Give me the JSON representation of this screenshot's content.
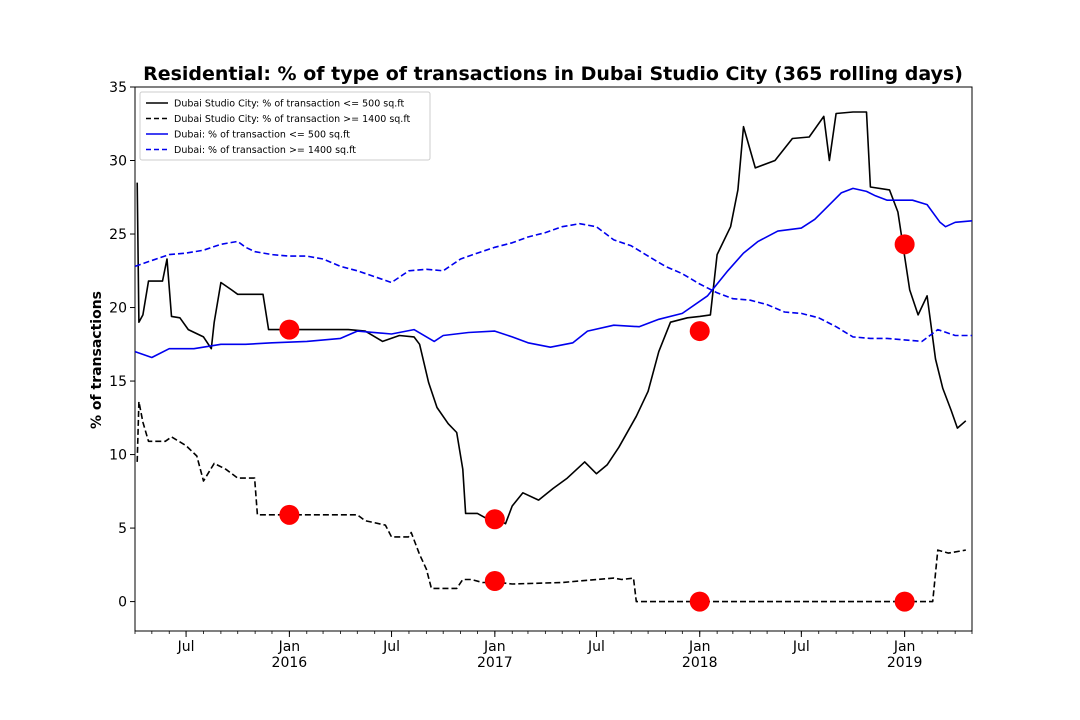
{
  "chart_data": {
    "type": "line",
    "title": "Residential: % of type of transactions in Dubai Studio City (365 rolling days)",
    "xlabel": "",
    "ylabel": "% of transactions",
    "xlim": [
      "2015-04-01",
      "2019-05-01"
    ],
    "ylim": [
      -2,
      35
    ],
    "y_ticks": [
      0,
      5,
      10,
      15,
      20,
      25,
      30,
      35
    ],
    "x_ticks": [
      {
        "date": "2015-07-01",
        "label": "Jul",
        "sublabel": ""
      },
      {
        "date": "2016-01-01",
        "label": "Jan",
        "sublabel": "2016"
      },
      {
        "date": "2016-07-01",
        "label": "Jul",
        "sublabel": ""
      },
      {
        "date": "2017-01-01",
        "label": "Jan",
        "sublabel": "2017"
      },
      {
        "date": "2017-07-01",
        "label": "Jul",
        "sublabel": ""
      },
      {
        "date": "2018-01-01",
        "label": "Jan",
        "sublabel": "2018"
      },
      {
        "date": "2018-07-01",
        "label": "Jul",
        "sublabel": ""
      },
      {
        "date": "2019-01-01",
        "label": "Jan",
        "sublabel": "2019"
      }
    ],
    "legend_position": "top-left",
    "grid": false,
    "series": [
      {
        "name": "Dubai Studio City: % of transaction <= 500 sq.ft",
        "color": "#000000",
        "style": "solid",
        "points": [
          [
            "2015-04-05",
            28.5
          ],
          [
            "2015-04-08",
            19.0
          ],
          [
            "2015-04-15",
            19.5
          ],
          [
            "2015-04-25",
            21.8
          ],
          [
            "2015-05-20",
            21.8
          ],
          [
            "2015-05-28",
            23.3
          ],
          [
            "2015-06-05",
            19.4
          ],
          [
            "2015-06-20",
            19.3
          ],
          [
            "2015-07-05",
            18.5
          ],
          [
            "2015-08-01",
            18.0
          ],
          [
            "2015-08-15",
            17.2
          ],
          [
            "2015-08-20",
            19.0
          ],
          [
            "2015-09-01",
            21.7
          ],
          [
            "2015-09-20",
            21.2
          ],
          [
            "2015-10-01",
            20.9
          ],
          [
            "2015-11-15",
            20.9
          ],
          [
            "2015-11-25",
            18.5
          ],
          [
            "2016-04-15",
            18.5
          ],
          [
            "2016-05-15",
            18.4
          ],
          [
            "2016-06-15",
            17.7
          ],
          [
            "2016-07-15",
            18.1
          ],
          [
            "2016-08-10",
            18.0
          ],
          [
            "2016-08-20",
            17.5
          ],
          [
            "2016-09-05",
            14.9
          ],
          [
            "2016-09-20",
            13.2
          ],
          [
            "2016-10-10",
            12.1
          ],
          [
            "2016-10-25",
            11.5
          ],
          [
            "2016-11-05",
            9.0
          ],
          [
            "2016-11-10",
            6.0
          ],
          [
            "2016-12-01",
            6.0
          ],
          [
            "2016-12-20",
            5.6
          ],
          [
            "2017-01-10",
            5.5
          ],
          [
            "2017-01-20",
            5.3
          ],
          [
            "2017-02-01",
            6.5
          ],
          [
            "2017-02-20",
            7.4
          ],
          [
            "2017-03-20",
            6.9
          ],
          [
            "2017-04-15",
            7.7
          ],
          [
            "2017-05-10",
            8.4
          ],
          [
            "2017-06-10",
            9.5
          ],
          [
            "2017-07-01",
            8.7
          ],
          [
            "2017-07-20",
            9.3
          ],
          [
            "2017-08-10",
            10.5
          ],
          [
            "2017-09-10",
            12.6
          ],
          [
            "2017-10-01",
            14.3
          ],
          [
            "2017-10-20",
            17.0
          ],
          [
            "2017-11-10",
            19.0
          ],
          [
            "2017-12-10",
            19.3
          ],
          [
            "2018-01-01",
            19.4
          ],
          [
            "2018-01-20",
            19.5
          ],
          [
            "2018-02-01",
            23.6
          ],
          [
            "2018-02-25",
            25.5
          ],
          [
            "2018-03-10",
            28.0
          ],
          [
            "2018-03-20",
            32.3
          ],
          [
            "2018-04-10",
            29.5
          ],
          [
            "2018-05-15",
            30.0
          ],
          [
            "2018-06-15",
            31.5
          ],
          [
            "2018-07-15",
            31.6
          ],
          [
            "2018-08-10",
            33.0
          ],
          [
            "2018-08-20",
            30.0
          ],
          [
            "2018-09-01",
            33.2
          ],
          [
            "2018-10-01",
            33.3
          ],
          [
            "2018-10-25",
            33.3
          ],
          [
            "2018-11-01",
            28.2
          ],
          [
            "2018-12-05",
            28.0
          ],
          [
            "2018-12-20",
            26.5
          ],
          [
            "2019-01-10",
            21.2
          ],
          [
            "2019-01-25",
            19.5
          ],
          [
            "2019-02-10",
            20.8
          ],
          [
            "2019-02-25",
            16.5
          ],
          [
            "2019-03-10",
            14.5
          ],
          [
            "2019-03-25",
            13.0
          ],
          [
            "2019-04-05",
            11.8
          ],
          [
            "2019-04-20",
            12.3
          ]
        ]
      },
      {
        "name": "Dubai Studio City: % of transaction >= 1400 sq.ft",
        "color": "#000000",
        "style": "dashed",
        "points": [
          [
            "2015-04-05",
            9.5
          ],
          [
            "2015-04-08",
            13.6
          ],
          [
            "2015-04-15",
            12.2
          ],
          [
            "2015-04-25",
            10.9
          ],
          [
            "2015-05-25",
            10.9
          ],
          [
            "2015-06-05",
            11.2
          ],
          [
            "2015-07-01",
            10.6
          ],
          [
            "2015-07-20",
            9.9
          ],
          [
            "2015-08-01",
            8.2
          ],
          [
            "2015-08-20",
            9.4
          ],
          [
            "2015-09-10",
            9.0
          ],
          [
            "2015-10-01",
            8.4
          ],
          [
            "2015-10-31",
            8.4
          ],
          [
            "2015-11-05",
            5.9
          ],
          [
            "2016-05-01",
            5.9
          ],
          [
            "2016-05-15",
            5.5
          ],
          [
            "2016-06-20",
            5.2
          ],
          [
            "2016-07-01",
            4.4
          ],
          [
            "2016-07-31",
            4.4
          ],
          [
            "2016-08-05",
            4.7
          ],
          [
            "2016-08-20",
            3.2
          ],
          [
            "2016-09-01",
            2.2
          ],
          [
            "2016-09-10",
            0.9
          ],
          [
            "2016-10-25",
            0.9
          ],
          [
            "2016-11-05",
            1.5
          ],
          [
            "2016-11-20",
            1.5
          ],
          [
            "2016-12-10",
            1.3
          ],
          [
            "2017-01-10",
            1.3
          ],
          [
            "2017-02-01",
            1.2
          ],
          [
            "2017-05-01",
            1.3
          ],
          [
            "2017-07-01",
            1.5
          ],
          [
            "2017-08-01",
            1.6
          ],
          [
            "2017-08-15",
            1.5
          ],
          [
            "2017-09-05",
            1.6
          ],
          [
            "2017-09-10",
            0.0
          ],
          [
            "2018-12-15",
            0.0
          ],
          [
            "2019-02-20",
            0.0
          ],
          [
            "2019-03-01",
            3.5
          ],
          [
            "2019-03-20",
            3.3
          ],
          [
            "2019-04-20",
            3.5
          ]
        ]
      },
      {
        "name": "Dubai: % of transaction <= 500 sq.ft",
        "color": "#0000ee",
        "style": "solid",
        "points": [
          [
            "2015-04-01",
            17.0
          ],
          [
            "2015-05-01",
            16.6
          ],
          [
            "2015-06-01",
            17.2
          ],
          [
            "2015-07-15",
            17.2
          ],
          [
            "2015-09-01",
            17.5
          ],
          [
            "2015-10-15",
            17.5
          ],
          [
            "2015-12-01",
            17.6
          ],
          [
            "2016-02-01",
            17.7
          ],
          [
            "2016-04-01",
            17.9
          ],
          [
            "2016-05-01",
            18.4
          ],
          [
            "2016-07-01",
            18.2
          ],
          [
            "2016-08-10",
            18.5
          ],
          [
            "2016-09-15",
            17.7
          ],
          [
            "2016-10-01",
            18.1
          ],
          [
            "2016-11-15",
            18.3
          ],
          [
            "2017-01-01",
            18.4
          ],
          [
            "2017-02-01",
            18.0
          ],
          [
            "2017-03-01",
            17.6
          ],
          [
            "2017-04-10",
            17.3
          ],
          [
            "2017-05-20",
            17.6
          ],
          [
            "2017-06-15",
            18.4
          ],
          [
            "2017-08-01",
            18.8
          ],
          [
            "2017-09-15",
            18.7
          ],
          [
            "2017-10-20",
            19.2
          ],
          [
            "2017-12-01",
            19.6
          ],
          [
            "2018-01-15",
            20.8
          ],
          [
            "2018-02-20",
            22.5
          ],
          [
            "2018-03-20",
            23.7
          ],
          [
            "2018-04-15",
            24.5
          ],
          [
            "2018-05-20",
            25.2
          ],
          [
            "2018-07-01",
            25.4
          ],
          [
            "2018-07-25",
            26.0
          ],
          [
            "2018-08-15",
            26.8
          ],
          [
            "2018-09-10",
            27.8
          ],
          [
            "2018-10-01",
            28.1
          ],
          [
            "2018-10-25",
            27.9
          ],
          [
            "2018-11-10",
            27.6
          ],
          [
            "2018-12-01",
            27.3
          ],
          [
            "2019-01-15",
            27.3
          ],
          [
            "2019-02-10",
            27.0
          ],
          [
            "2019-03-05",
            25.8
          ],
          [
            "2019-03-15",
            25.5
          ],
          [
            "2019-04-01",
            25.8
          ],
          [
            "2019-05-01",
            25.9
          ]
        ]
      },
      {
        "name": "Dubai: % of transaction >= 1400 sq.ft",
        "color": "#0000ee",
        "style": "dashed",
        "points": [
          [
            "2015-04-01",
            22.8
          ],
          [
            "2015-05-01",
            23.2
          ],
          [
            "2015-06-01",
            23.6
          ],
          [
            "2015-07-01",
            23.7
          ],
          [
            "2015-08-01",
            23.9
          ],
          [
            "2015-09-01",
            24.3
          ],
          [
            "2015-10-01",
            24.5
          ],
          [
            "2015-10-15",
            24.1
          ],
          [
            "2015-11-01",
            23.8
          ],
          [
            "2015-12-01",
            23.6
          ],
          [
            "2016-01-01",
            23.5
          ],
          [
            "2016-02-01",
            23.5
          ],
          [
            "2016-03-01",
            23.3
          ],
          [
            "2016-04-01",
            22.8
          ],
          [
            "2016-05-01",
            22.5
          ],
          [
            "2016-06-01",
            22.1
          ],
          [
            "2016-07-01",
            21.7
          ],
          [
            "2016-08-01",
            22.5
          ],
          [
            "2016-09-01",
            22.6
          ],
          [
            "2016-10-01",
            22.5
          ],
          [
            "2016-11-01",
            23.3
          ],
          [
            "2016-12-01",
            23.7
          ],
          [
            "2017-01-01",
            24.1
          ],
          [
            "2017-02-01",
            24.4
          ],
          [
            "2017-03-01",
            24.8
          ],
          [
            "2017-04-01",
            25.1
          ],
          [
            "2017-05-01",
            25.5
          ],
          [
            "2017-06-01",
            25.7
          ],
          [
            "2017-07-01",
            25.5
          ],
          [
            "2017-08-01",
            24.6
          ],
          [
            "2017-09-01",
            24.2
          ],
          [
            "2017-10-01",
            23.5
          ],
          [
            "2017-11-01",
            22.8
          ],
          [
            "2017-12-01",
            22.3
          ],
          [
            "2018-01-01",
            21.6
          ],
          [
            "2018-02-01",
            21.0
          ],
          [
            "2018-03-01",
            20.6
          ],
          [
            "2018-04-01",
            20.5
          ],
          [
            "2018-05-01",
            20.2
          ],
          [
            "2018-06-01",
            19.7
          ],
          [
            "2018-07-01",
            19.6
          ],
          [
            "2018-08-01",
            19.3
          ],
          [
            "2018-09-01",
            18.7
          ],
          [
            "2018-10-01",
            18.0
          ],
          [
            "2018-11-01",
            17.9
          ],
          [
            "2018-12-01",
            17.9
          ],
          [
            "2019-01-01",
            17.8
          ],
          [
            "2019-02-01",
            17.7
          ],
          [
            "2019-03-01",
            18.5
          ],
          [
            "2019-04-01",
            18.1
          ],
          [
            "2019-05-01",
            18.1
          ]
        ]
      }
    ],
    "markers": {
      "color": "#ff0000",
      "points": [
        [
          "2016-01-01",
          18.5
        ],
        [
          "2016-01-01",
          5.9
        ],
        [
          "2017-01-01",
          5.6
        ],
        [
          "2017-01-01",
          1.4
        ],
        [
          "2018-01-01",
          18.4
        ],
        [
          "2018-01-01",
          0.0
        ],
        [
          "2019-01-01",
          24.3
        ],
        [
          "2019-01-01",
          0.0
        ]
      ]
    }
  }
}
